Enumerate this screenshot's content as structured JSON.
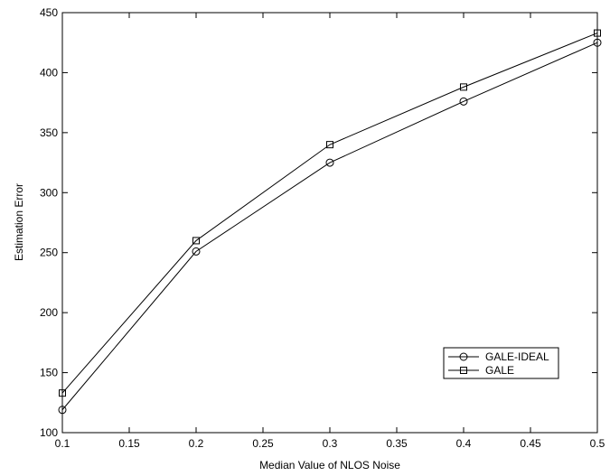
{
  "chart_data": {
    "type": "line",
    "xlabel": "Median Value of NLOS Noise",
    "ylabel": "Estimation Error",
    "xlim": [
      0.1,
      0.5
    ],
    "ylim": [
      100,
      450
    ],
    "xticks": [
      "0.1",
      "0.15",
      "0.2",
      "0.25",
      "0.3",
      "0.35",
      "0.4",
      "0.45",
      "0.5"
    ],
    "yticks": [
      "100",
      "150",
      "200",
      "250",
      "300",
      "350",
      "400",
      "450"
    ],
    "x": [
      0.1,
      0.2,
      0.3,
      0.4,
      0.5
    ],
    "series": [
      {
        "name": "GALE-IDEAL",
        "marker": "circle",
        "values": [
          119,
          251,
          325,
          376,
          425
        ]
      },
      {
        "name": "GALE",
        "marker": "square",
        "values": [
          133,
          260,
          340,
          388,
          433
        ]
      }
    ],
    "grid": false,
    "legend_position": "lower-right",
    "colors": {
      "line": "#000000",
      "background": "#ffffff"
    }
  }
}
